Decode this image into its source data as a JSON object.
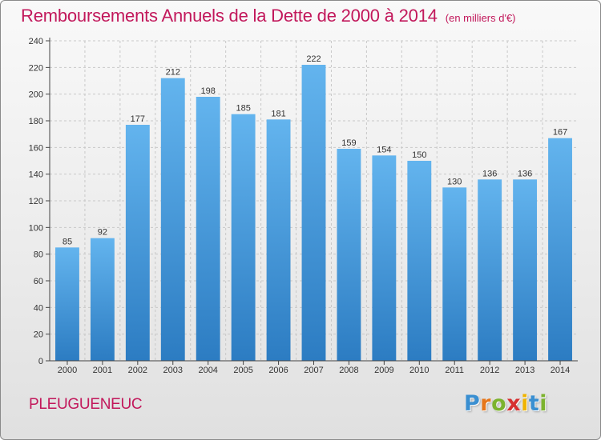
{
  "title": "Remboursements Annuels de la Dette de 2000 à 2014",
  "unit_note": "(en milliers d'€)",
  "commune": "PLEUGUENEUC",
  "logo_text": "Proxiti",
  "colors": {
    "title": "#c2185b",
    "bar_light": "#5fb0ea",
    "bar_dark": "#2f7fc4",
    "axis": "#444444",
    "grid": "#c8c8c8"
  },
  "chart_data": {
    "type": "bar",
    "title": "Remboursements Annuels de la Dette de 2000 à 2014",
    "subtitle": "(en milliers d'€)",
    "xlabel": "",
    "ylabel": "",
    "categories": [
      "2000",
      "2001",
      "2002",
      "2003",
      "2004",
      "2005",
      "2006",
      "2007",
      "2008",
      "2009",
      "2010",
      "2011",
      "2012",
      "2013",
      "2014"
    ],
    "values": [
      85,
      92,
      177,
      212,
      198,
      185,
      181,
      222,
      159,
      154,
      150,
      130,
      136,
      136,
      167
    ],
    "ylim": [
      0,
      240
    ],
    "yticks": [
      0,
      20,
      40,
      60,
      80,
      100,
      120,
      140,
      160,
      180,
      200,
      220,
      240
    ],
    "grid": true,
    "data_labels": true
  }
}
